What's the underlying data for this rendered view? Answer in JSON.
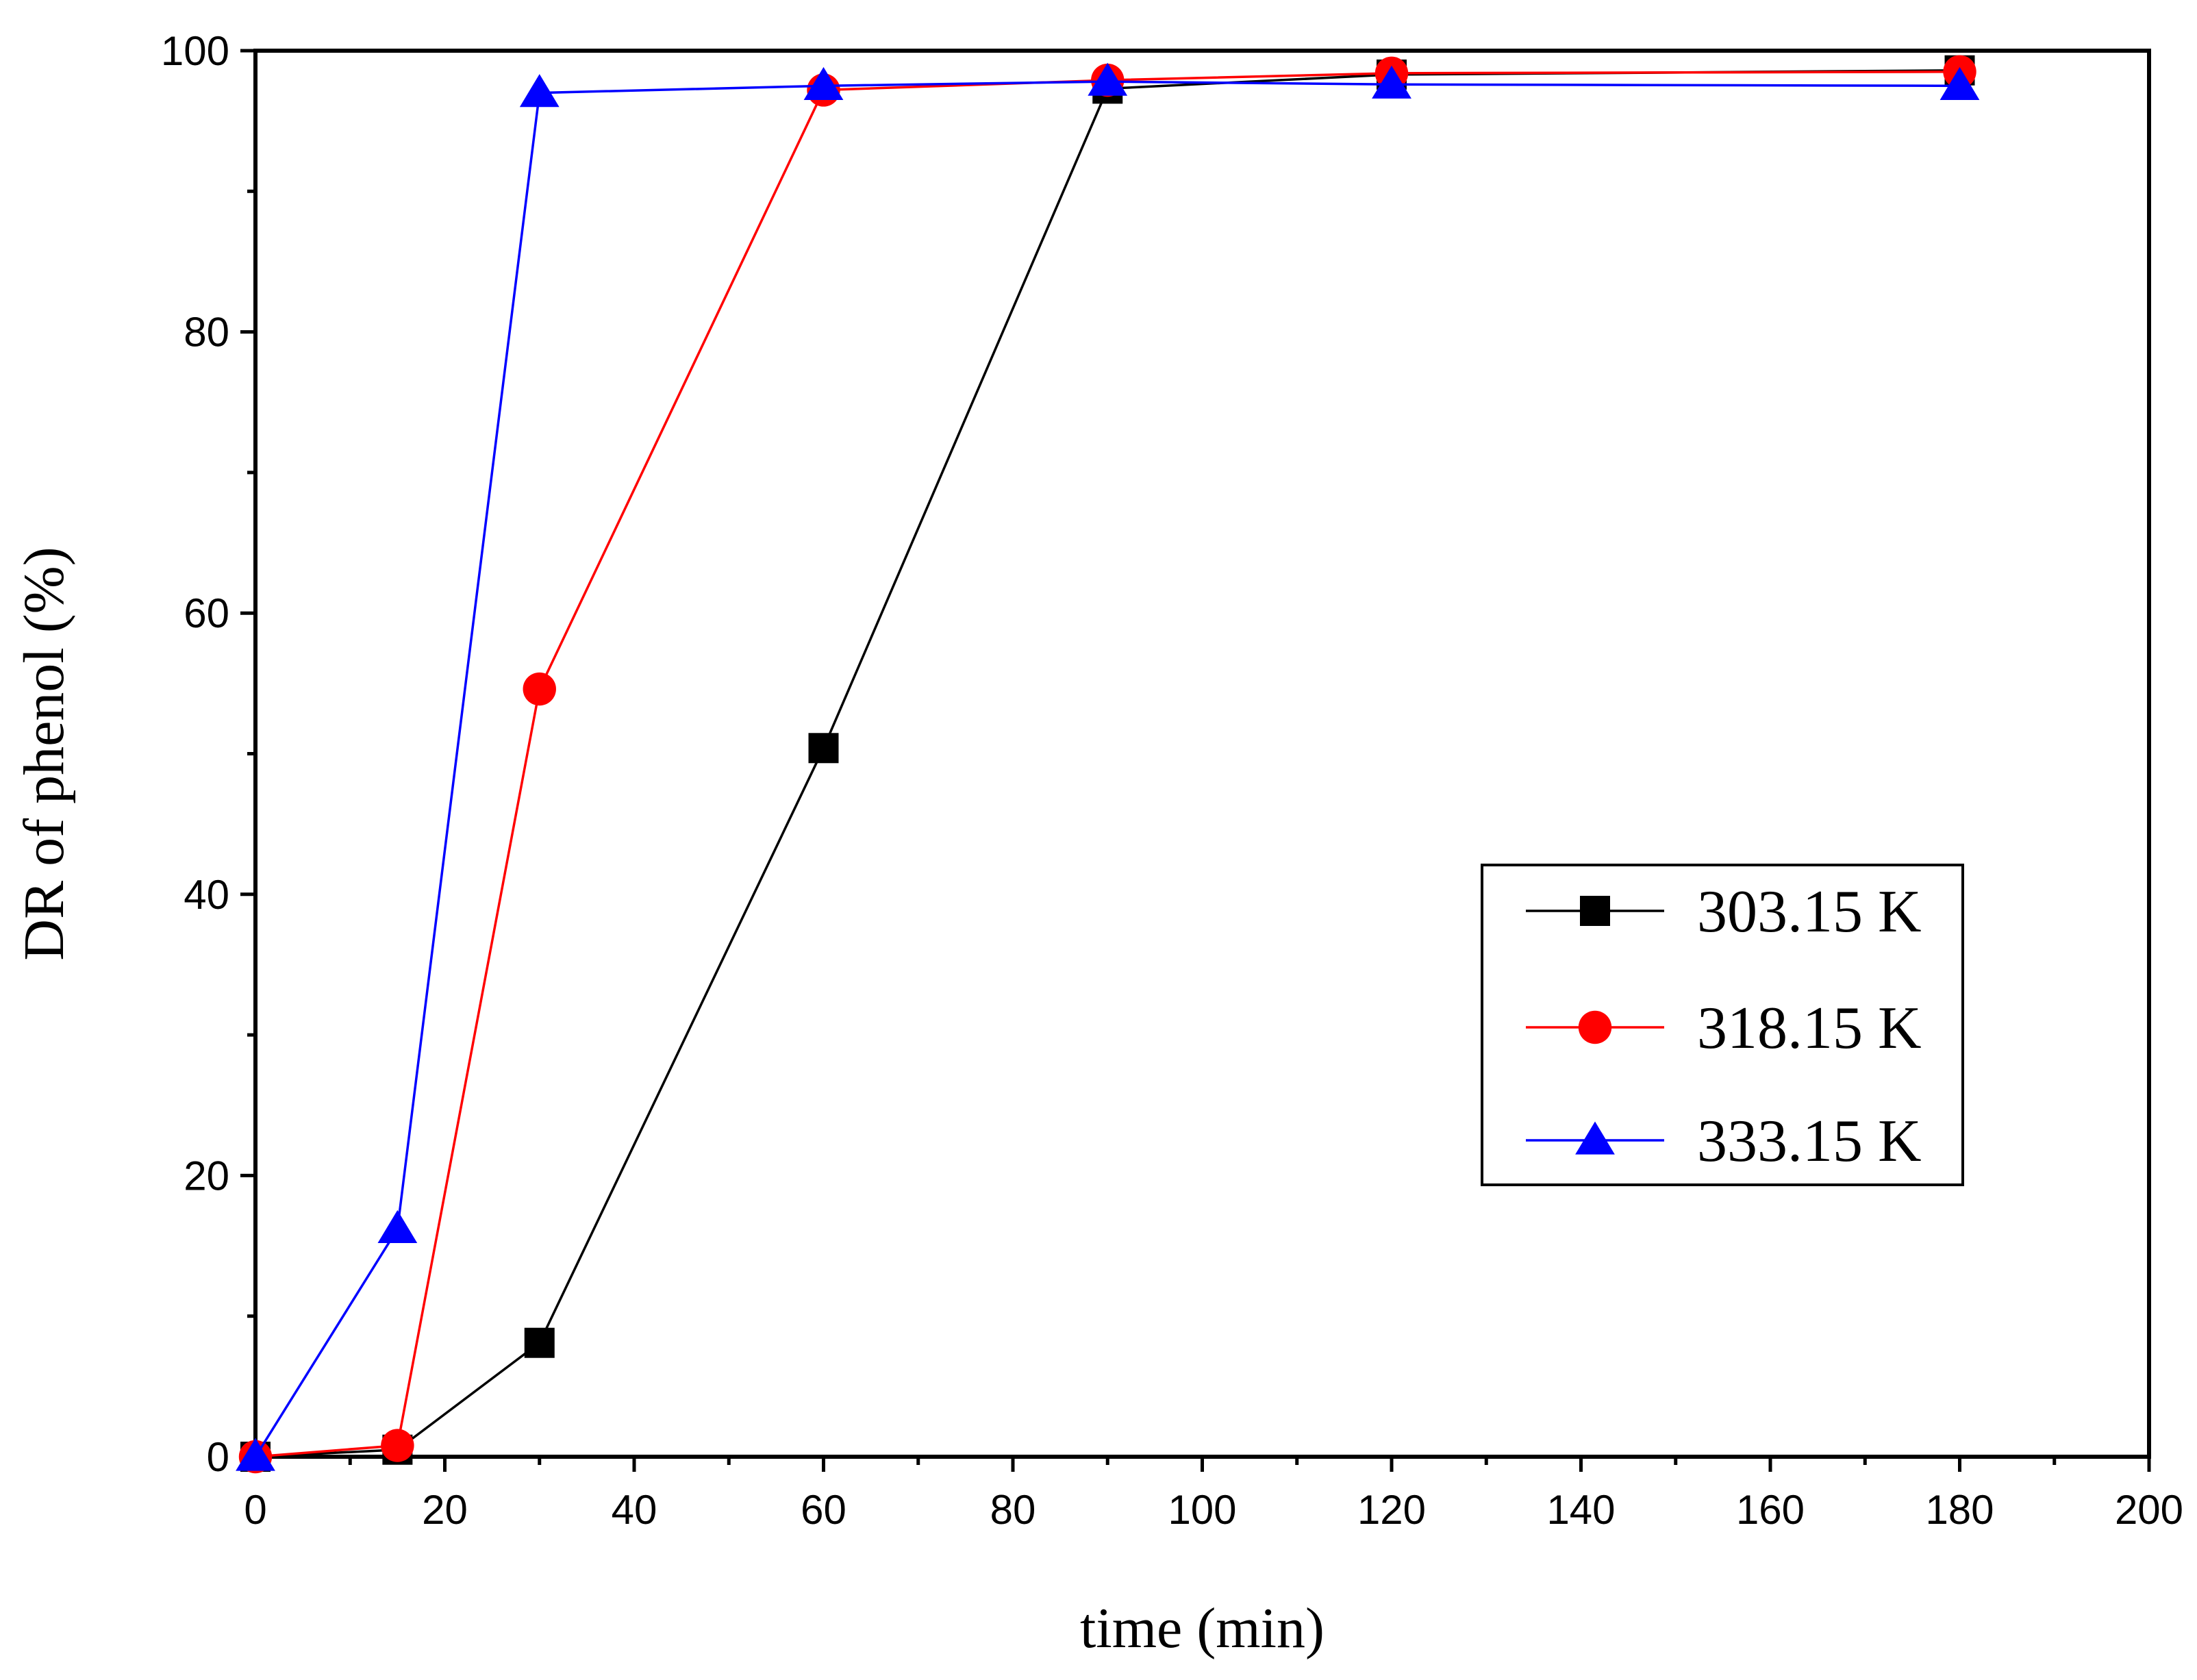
{
  "chart_data": {
    "type": "line",
    "xlabel": "time (min)",
    "ylabel": "DR of phenol (%)",
    "xlim": [
      0,
      200
    ],
    "ylim": [
      0,
      100
    ],
    "xticks": [
      0,
      20,
      40,
      60,
      80,
      100,
      120,
      140,
      160,
      180,
      200
    ],
    "yticks": [
      0,
      20,
      40,
      60,
      80,
      100
    ],
    "grid": false,
    "legend_position": "center-right",
    "series": [
      {
        "name": "303.15 K",
        "color": "#000000",
        "marker": "square",
        "x": [
          0,
          15,
          30,
          60,
          90,
          120,
          180
        ],
        "y": [
          0,
          0.5,
          8.1,
          50.4,
          97.3,
          98.3,
          98.6
        ]
      },
      {
        "name": "318.15 K",
        "color": "#ff0000",
        "marker": "circle",
        "x": [
          0,
          15,
          30,
          60,
          90,
          120,
          180
        ],
        "y": [
          0,
          0.8,
          54.6,
          97.2,
          97.9,
          98.4,
          98.5
        ]
      },
      {
        "name": "333.15 K",
        "color": "#0000ff",
        "marker": "triangle",
        "x": [
          0,
          15,
          30,
          60,
          90,
          120,
          180
        ],
        "y": [
          0,
          16.2,
          97.0,
          97.5,
          97.8,
          97.6,
          97.5
        ]
      }
    ]
  }
}
